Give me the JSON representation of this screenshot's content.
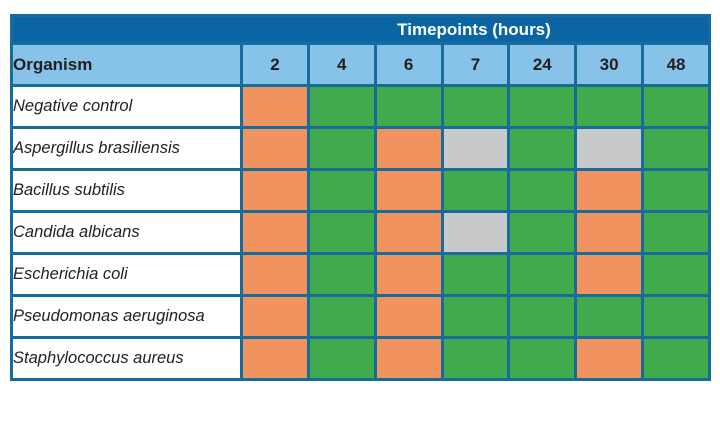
{
  "chart_data": {
    "type": "table",
    "title": "Timepoints (hours)",
    "row_header_label": "Organism",
    "columns": [
      "2",
      "4",
      "6",
      "7",
      "24",
      "30",
      "48"
    ],
    "rows": [
      {
        "organism": "Negative control",
        "cells": [
          "orange",
          "green",
          "green",
          "green",
          "green",
          "green",
          "green"
        ]
      },
      {
        "organism": "Aspergillus brasiliensis",
        "cells": [
          "orange",
          "green",
          "orange",
          "gray",
          "green",
          "gray",
          "green"
        ]
      },
      {
        "organism": "Bacillus subtilis",
        "cells": [
          "orange",
          "green",
          "orange",
          "green",
          "green",
          "orange",
          "green"
        ]
      },
      {
        "organism": "Candida albicans",
        "cells": [
          "orange",
          "green",
          "orange",
          "gray",
          "green",
          "orange",
          "green"
        ]
      },
      {
        "organism": "Escherichia coli",
        "cells": [
          "orange",
          "green",
          "orange",
          "green",
          "green",
          "orange",
          "green"
        ]
      },
      {
        "organism": "Pseudomonas aeruginosa",
        "cells": [
          "orange",
          "green",
          "orange",
          "green",
          "green",
          "green",
          "green"
        ]
      },
      {
        "organism": "Staphylococcus aureus",
        "cells": [
          "orange",
          "green",
          "orange",
          "green",
          "green",
          "orange",
          "green"
        ]
      }
    ],
    "colors": {
      "orange": "#F0935E",
      "green": "#3FAB4C",
      "gray": "#C7C9CB",
      "band_background": "#0B65A5",
      "band_text": "#FFFFFF",
      "header_background": "#87C3E8",
      "grid": "#176C9C",
      "text": "#231F20",
      "page_background": "#FFFFFF"
    }
  }
}
